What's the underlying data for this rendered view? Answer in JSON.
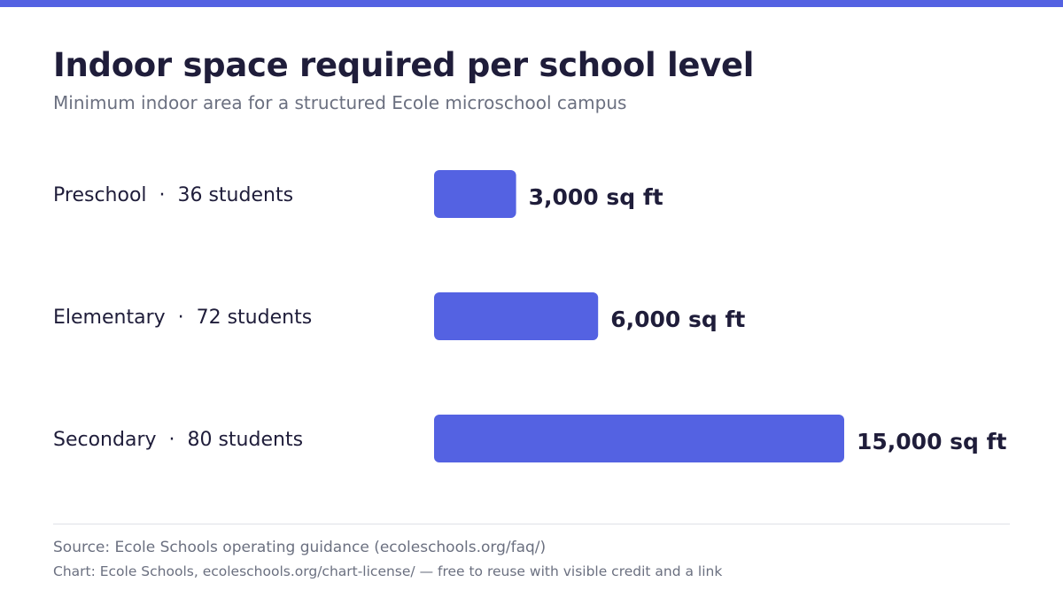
{
  "colors": {
    "accent": "#5462e2",
    "text": "#1f1d3a",
    "muted": "#6b7080"
  },
  "chart_data": {
    "type": "bar",
    "orientation": "horizontal",
    "title": "Indoor space required per school level",
    "subtitle": "Minimum indoor area for a structured Ecole microschool campus",
    "categories": [
      {
        "name": "Preschool",
        "students": "36 students"
      },
      {
        "name": "Elementary",
        "students": "72 students"
      },
      {
        "name": "Secondary",
        "students": "80 students"
      }
    ],
    "values": [
      3000,
      6000,
      15000
    ],
    "value_labels": [
      "3,000 sq ft",
      "6,000 sq ft",
      "15,000 sq ft"
    ],
    "separator": "·",
    "xlim": [
      0,
      15000
    ],
    "grid": false
  },
  "footer": {
    "source": "Source: Ecole Schools operating guidance (ecoleschools.org/faq/)",
    "credit": "Chart: Ecole Schools, ecoleschools.org/chart-license/ — free to reuse with visible credit and a link"
  }
}
